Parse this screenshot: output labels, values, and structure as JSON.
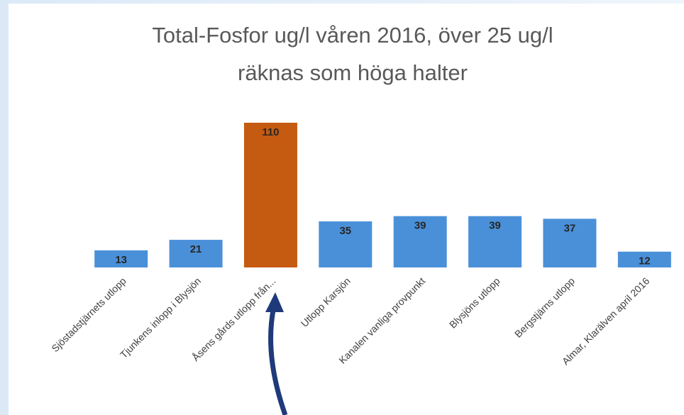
{
  "chart_data": {
    "type": "bar",
    "title": [
      "Total-Fosfor ug/l våren 2016, över 25 ug/l",
      "räknas som höga halter"
    ],
    "categories": [
      "Sjöstadstjärnets utlopp",
      "Tjunkens inlopp i Blysjön",
      "Åsens gårds utlopp från...",
      "Utlopp Karsjön",
      "Kanalen vanliga provpunkt",
      "Blysjöns utlopp",
      "Bergstjärns utlopp",
      "Almar, Klarälven  april 2016"
    ],
    "values": [
      13,
      21,
      110,
      35,
      39,
      39,
      37,
      12
    ],
    "colors": [
      "#4a90d9",
      "#4a90d9",
      "#c55a11",
      "#4a90d9",
      "#4a90d9",
      "#4a90d9",
      "#4a90d9",
      "#4a90d9"
    ]
  }
}
